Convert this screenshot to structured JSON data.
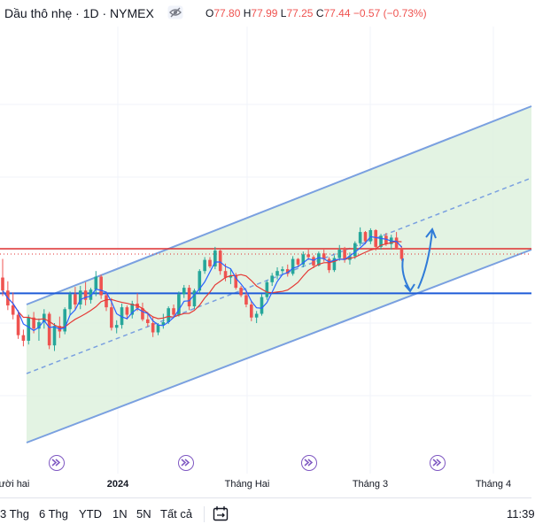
{
  "header": {
    "symbol": "Dầu thô nhẹ · 1D · NYMEX",
    "ohlc": [
      {
        "label": "O",
        "value": "77.80"
      },
      {
        "label": "H",
        "value": "77.99"
      },
      {
        "label": "L",
        "value": "77.25"
      },
      {
        "label": "C",
        "value": "77.44"
      }
    ],
    "change": "−0.57 (−0.73%)"
  },
  "x_axis_labels": [
    "ười hai",
    "2024",
    "Tháng Hai",
    "Tháng 3",
    "Tháng 4"
  ],
  "timeframes": [
    "3 Thg",
    "6 Thg",
    "YTD",
    "1N",
    "5N",
    "Tất cả"
  ],
  "time": "11:39",
  "icons": {
    "visibility": "eye-slash-icon",
    "calendar": "calendar-range-icon",
    "event": "play-forward-icon"
  },
  "colors": {
    "up": "#26a69a",
    "down": "#ef5350",
    "channel": "#7aa0e0",
    "channel_fill": "#e0f2e0",
    "support_line": "#1e5bd8",
    "resistance_line": "#e03030",
    "arrow": "#2f7bd8",
    "event_marker": "#7e57c2"
  },
  "chart_data": {
    "type": "candlestick",
    "x": [
      "Dec",
      "2024",
      "Feb",
      "Mar",
      "Apr"
    ],
    "candles": [
      [
        76.0,
        78.0,
        74.0,
        74.6
      ],
      [
        74.6,
        75.6,
        72.5,
        73.0
      ],
      [
        73.0,
        74.4,
        71.5,
        72.0
      ],
      [
        72.0,
        72.5,
        69.4,
        69.8
      ],
      [
        69.8,
        70.4,
        68.6,
        69.2
      ],
      [
        69.2,
        72.0,
        68.8,
        71.7
      ],
      [
        71.7,
        72.3,
        70.0,
        70.5
      ],
      [
        70.5,
        71.6,
        69.2,
        71.2
      ],
      [
        71.2,
        72.6,
        70.5,
        72.1
      ],
      [
        72.1,
        72.3,
        68.3,
        68.7
      ],
      [
        68.7,
        71.1,
        68.1,
        70.8
      ],
      [
        70.8,
        71.8,
        69.5,
        70.2
      ],
      [
        70.2,
        72.8,
        69.9,
        72.6
      ],
      [
        72.6,
        74.5,
        72.0,
        74.2
      ],
      [
        74.2,
        75.0,
        72.5,
        73.1
      ],
      [
        73.1,
        75.1,
        72.6,
        74.6
      ],
      [
        74.6,
        75.5,
        73.0,
        73.6
      ],
      [
        73.6,
        74.9,
        73.2,
        74.7
      ],
      [
        74.7,
        76.7,
        74.0,
        76.1
      ],
      [
        76.1,
        76.3,
        73.7,
        74.1
      ],
      [
        74.1,
        74.5,
        72.4,
        72.8
      ],
      [
        72.8,
        73.8,
        70.3,
        70.6
      ],
      [
        70.6,
        71.4,
        70.0,
        70.9
      ],
      [
        70.9,
        73.2,
        70.5,
        72.8
      ],
      [
        72.8,
        73.0,
        71.5,
        72.0
      ],
      [
        72.0,
        73.5,
        71.6,
        73.2
      ],
      [
        73.2,
        74.3,
        72.4,
        72.7
      ],
      [
        72.7,
        73.3,
        71.3,
        71.5
      ],
      [
        71.5,
        72.3,
        70.7,
        71.1
      ],
      [
        71.1,
        71.8,
        69.6,
        70.1
      ],
      [
        70.1,
        71.1,
        69.8,
        70.9
      ],
      [
        70.9,
        72.1,
        70.5,
        71.2
      ],
      [
        71.2,
        72.9,
        71.0,
        72.7
      ],
      [
        72.7,
        73.1,
        71.8,
        72.0
      ],
      [
        72.0,
        74.5,
        71.8,
        74.2
      ],
      [
        74.2,
        75.2,
        73.8,
        74.9
      ],
      [
        74.9,
        75.2,
        72.5,
        72.9
      ],
      [
        72.9,
        74.8,
        72.6,
        74.6
      ],
      [
        74.6,
        76.9,
        74.3,
        76.7
      ],
      [
        76.7,
        78.2,
        76.4,
        77.9
      ],
      [
        77.9,
        78.2,
        77.0,
        77.2
      ],
      [
        77.2,
        79.3,
        76.9,
        78.9
      ],
      [
        78.9,
        79.0,
        76.3,
        76.7
      ],
      [
        76.7,
        77.5,
        75.6,
        76.0
      ],
      [
        76.0,
        77.0,
        75.3,
        76.2
      ],
      [
        76.2,
        76.5,
        74.7,
        74.9
      ],
      [
        74.9,
        75.1,
        73.9,
        74.1
      ],
      [
        74.1,
        74.7,
        72.8,
        73.1
      ],
      [
        73.1,
        73.5,
        71.3,
        71.7
      ],
      [
        71.7,
        72.4,
        71.1,
        72.1
      ],
      [
        72.1,
        74.2,
        71.9,
        73.9
      ],
      [
        73.9,
        75.7,
        73.6,
        75.5
      ],
      [
        75.5,
        76.5,
        75.1,
        76.2
      ],
      [
        76.2,
        77.1,
        75.8,
        76.7
      ],
      [
        76.7,
        77.2,
        76.4,
        76.9
      ],
      [
        76.9,
        77.4,
        76.1,
        76.4
      ],
      [
        76.4,
        78.3,
        76.2,
        78.0
      ],
      [
        78.0,
        78.1,
        77.1,
        77.4
      ],
      [
        77.4,
        78.8,
        77.1,
        78.5
      ],
      [
        78.5,
        79.1,
        77.9,
        78.2
      ],
      [
        78.2,
        78.4,
        77.0,
        77.3
      ],
      [
        77.3,
        78.8,
        77.2,
        78.6
      ],
      [
        78.6,
        79.0,
        77.7,
        78.0
      ],
      [
        78.0,
        78.2,
        76.5,
        76.8
      ],
      [
        76.8,
        78.4,
        76.6,
        78.1
      ],
      [
        78.1,
        79.5,
        77.8,
        79.0
      ],
      [
        79.0,
        79.3,
        77.6,
        77.9
      ],
      [
        77.9,
        78.7,
        77.4,
        78.3
      ],
      [
        78.3,
        79.9,
        78.0,
        79.7
      ],
      [
        79.7,
        81.4,
        79.4,
        80.9
      ],
      [
        80.9,
        81.0,
        79.6,
        79.9
      ],
      [
        79.9,
        81.3,
        79.6,
        81.1
      ],
      [
        81.1,
        81.2,
        78.9,
        79.3
      ],
      [
        79.3,
        80.7,
        79.0,
        80.5
      ],
      [
        80.5,
        80.8,
        79.4,
        79.6
      ],
      [
        79.6,
        80.6,
        79.0,
        80.3
      ],
      [
        80.3,
        80.9,
        79.0,
        79.2
      ],
      [
        79.2,
        79.4,
        77.8,
        78.0
      ]
    ],
    "moving_averages": [
      {
        "name": "MA short",
        "color": "#2962ff"
      },
      {
        "name": "MA long",
        "color": "#e53935"
      }
    ],
    "horizontal_lines": [
      79.1,
      74.3
    ],
    "channel": "ascending parallel channel",
    "grid": true
  }
}
